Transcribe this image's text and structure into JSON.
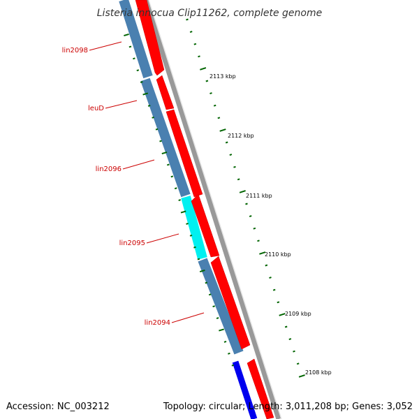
{
  "title": "Listeria innocua Clip11262, complete genome",
  "footer": {
    "accession": "Accession: NC_003212",
    "summary": "Topology: circular; Length: 3,011,208 bp; Genes: 3,052"
  },
  "gene_labels": [
    "lin2098",
    "leuD",
    "lin2096",
    "lin2095",
    "lin2094"
  ],
  "tick_labels": [
    "2113 kbp",
    "2112 kbp",
    "2111 kbp",
    "2110 kbp",
    "2109 kbp",
    "2108 kbp"
  ],
  "colors": {
    "forward_gene": "#ff0000",
    "reverse_gene": "#4682b4",
    "highlight_gene": "#00ffff",
    "blue_gene": "#0000ff",
    "backbone": "#888888",
    "ticks": "#006400",
    "label": "#cc0000"
  }
}
